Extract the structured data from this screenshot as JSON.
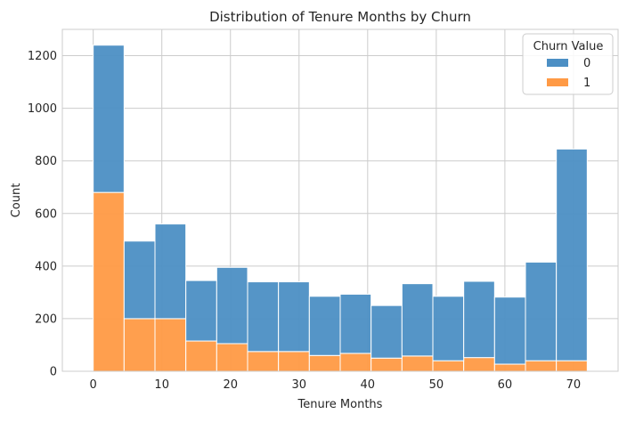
{
  "chart_data": {
    "type": "bar",
    "subtype": "stacked-histogram",
    "title": "Distribution of Tenure Months by Churn",
    "xlabel": "Tenure Months",
    "ylabel": "Count",
    "xlim": [
      -4.5,
      76.5
    ],
    "ylim": [
      0,
      1300
    ],
    "xticks": [
      0,
      10,
      20,
      30,
      40,
      50,
      60,
      70
    ],
    "yticks": [
      0,
      200,
      400,
      600,
      800,
      1000,
      1200
    ],
    "grid": true,
    "legend": {
      "title": "Churn Value",
      "placement": "top-right"
    },
    "bin_edges": [
      0,
      4.5,
      9,
      13.5,
      18,
      22.5,
      27,
      31.5,
      36,
      40.5,
      45,
      49.5,
      54,
      58.5,
      63,
      67.5,
      72
    ],
    "series": [
      {
        "name": "0",
        "color": "#4c8fc4",
        "values": [
          560,
          295,
          360,
          230,
          290,
          265,
          265,
          225,
          225,
          200,
          275,
          245,
          290,
          255,
          375,
          805
        ]
      },
      {
        "name": "1",
        "color": "#ff9a45",
        "values": [
          680,
          200,
          200,
          115,
          105,
          75,
          75,
          60,
          68,
          50,
          58,
          40,
          52,
          27,
          40,
          40
        ]
      }
    ]
  }
}
